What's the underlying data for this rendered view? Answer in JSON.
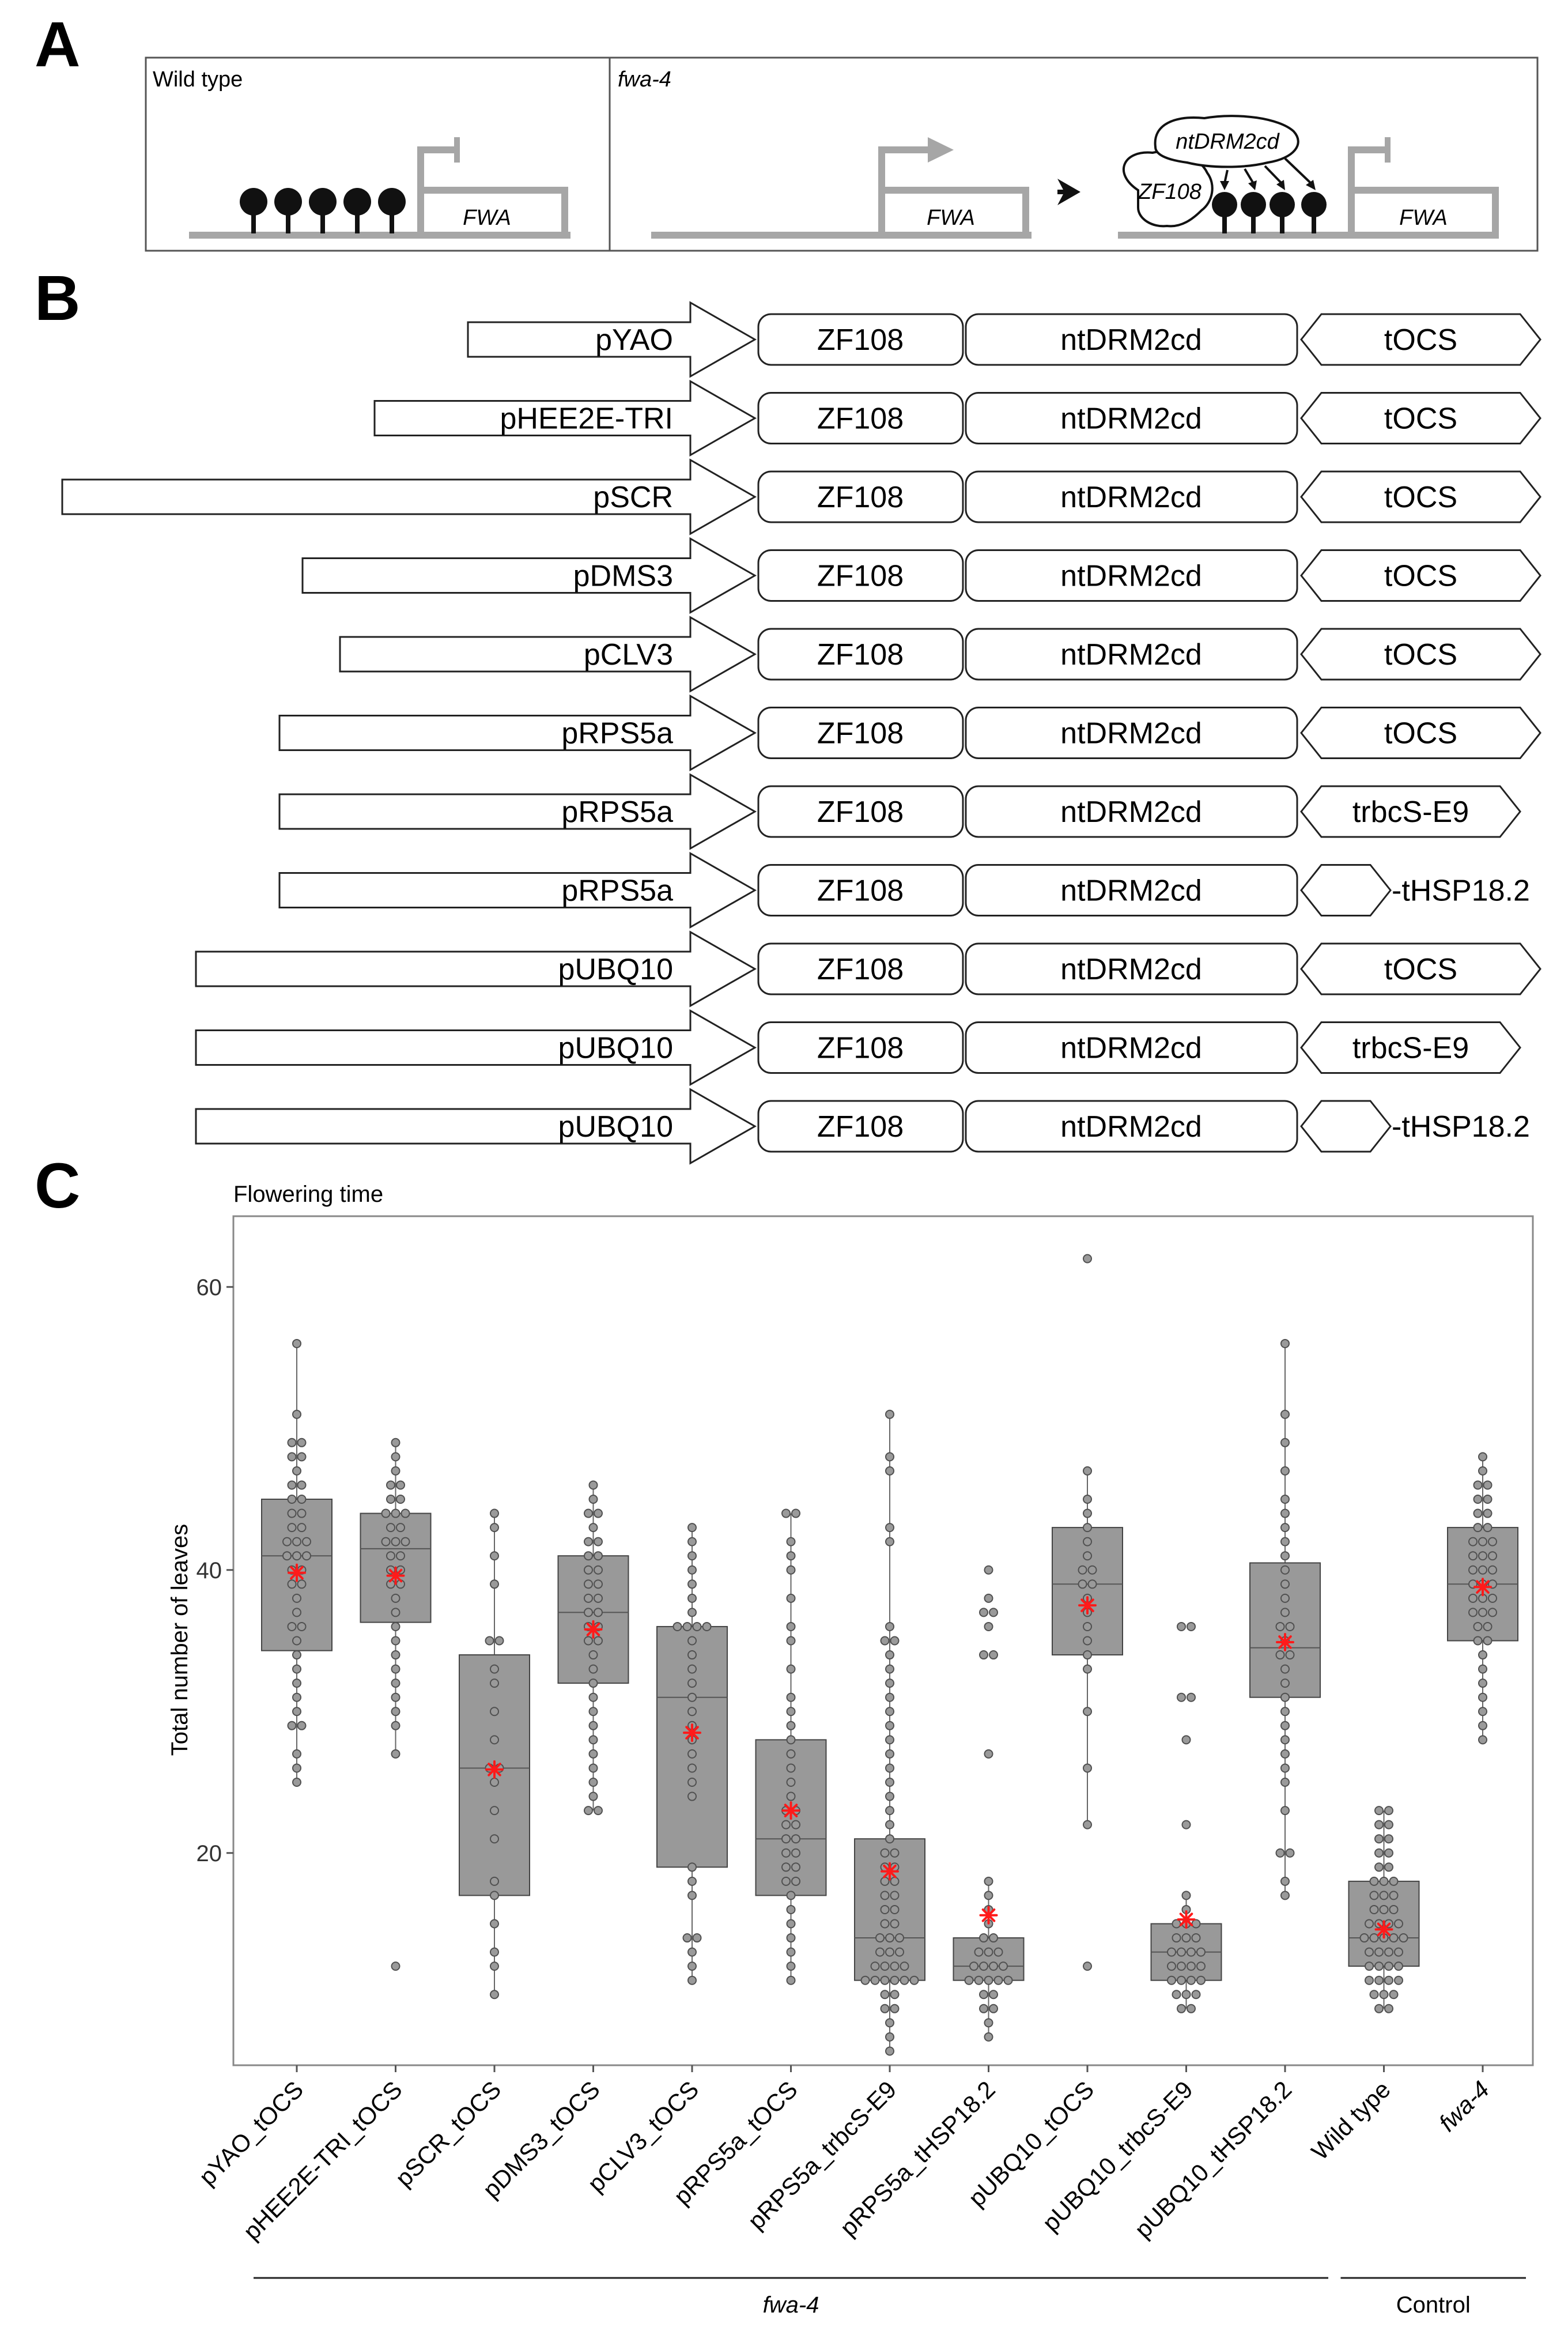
{
  "panel_a": {
    "letter": "A",
    "wild_type_label": "Wild type",
    "fwa4_label": "fwa-4",
    "gene_label": "FWA",
    "zf_label": "ZF108",
    "drm_label": "ntDRM2cd"
  },
  "panel_b": {
    "letter": "B",
    "constructs": [
      {
        "promoter": "pYAO",
        "zf": "ZF108",
        "effector": "ntDRM2cd",
        "terminator": "tOCS"
      },
      {
        "promoter": "pHEE2E-TRI",
        "zf": "ZF108",
        "effector": "ntDRM2cd",
        "terminator": "tOCS"
      },
      {
        "promoter": "pSCR",
        "zf": "ZF108",
        "effector": "ntDRM2cd",
        "terminator": "tOCS"
      },
      {
        "promoter": "pDMS3",
        "zf": "ZF108",
        "effector": "ntDRM2cd",
        "terminator": "tOCS"
      },
      {
        "promoter": "pCLV3",
        "zf": "ZF108",
        "effector": "ntDRM2cd",
        "terminator": "tOCS"
      },
      {
        "promoter": "pRPS5a",
        "zf": "ZF108",
        "effector": "ntDRM2cd",
        "terminator": "tOCS"
      },
      {
        "promoter": "pRPS5a",
        "zf": "ZF108",
        "effector": "ntDRM2cd",
        "terminator": "trbcS-E9"
      },
      {
        "promoter": "pRPS5a",
        "zf": "ZF108",
        "effector": "ntDRM2cd",
        "terminator": "-tHSP18.2"
      },
      {
        "promoter": "pUBQ10",
        "zf": "ZF108",
        "effector": "ntDRM2cd",
        "terminator": "tOCS"
      },
      {
        "promoter": "pUBQ10",
        "zf": "ZF108",
        "effector": "ntDRM2cd",
        "terminator": "trbcS-E9"
      },
      {
        "promoter": "pUBQ10",
        "zf": "ZF108",
        "effector": "ntDRM2cd",
        "terminator": "-tHSP18.2"
      }
    ]
  },
  "chart_data": {
    "letter": "C",
    "type": "box",
    "title": "Flowering time",
    "xlabel": "",
    "ylabel": "Total number of leaves",
    "ylim": [
      5,
      65
    ],
    "yticks": [
      20,
      40,
      60
    ],
    "categories": [
      "pYAO_tOCS",
      "pHEE2E-TRI_tOCS",
      "pSCR_tOCS",
      "pDMS3_tOCS",
      "pCLV3_tOCS",
      "pRPS5a_tOCS",
      "pRPS5a_trbcS-E9",
      "pRPS5a_tHSP18.2",
      "pUBQ10_tOCS",
      "pUBQ10_trbcS-E9",
      "pUBQ10_tHSP18.2",
      "Wild type",
      "fwa-4"
    ],
    "italic_categories": [
      "fwa-4"
    ],
    "groups": [
      {
        "label": "fwa-4",
        "from": 0,
        "to": 10,
        "italic": true
      },
      {
        "label": "Control",
        "from": 11,
        "to": 12,
        "italic": false
      }
    ],
    "series": [
      {
        "name": "pYAO_tOCS",
        "q1": 34.3,
        "median": 41,
        "q3": 45,
        "whisker_low": 25,
        "whisker_high": 56,
        "mean": 39.8,
        "points": [
          56,
          51,
          49,
          49,
          48,
          48,
          47,
          46,
          46,
          45,
          45,
          44,
          44,
          43,
          43,
          42,
          42,
          42,
          41,
          41,
          41,
          40,
          40,
          39,
          39,
          38,
          37,
          36,
          36,
          35,
          34,
          33,
          32,
          31,
          30,
          29,
          29,
          27,
          26,
          25
        ]
      },
      {
        "name": "pHEE2E-TRI_tOCS",
        "q1": 36.3,
        "median": 41.5,
        "q3": 44,
        "whisker_low": 27,
        "whisker_high": 49,
        "mean": 39.6,
        "points": [
          49,
          48,
          47,
          46,
          46,
          45,
          45,
          44,
          44,
          44,
          43,
          43,
          42,
          42,
          42,
          41,
          41,
          40,
          40,
          39,
          39,
          38,
          37,
          36,
          35,
          34,
          33,
          32,
          31,
          30,
          29,
          27,
          12
        ]
      },
      {
        "name": "pSCR_tOCS",
        "q1": 17,
        "median": 26,
        "q3": 34,
        "whisker_low": 10,
        "whisker_high": 44,
        "mean": 25.9,
        "points": [
          44,
          43,
          41,
          39,
          35,
          35,
          33,
          32,
          30,
          28,
          26,
          26,
          25,
          23,
          21,
          18,
          17,
          15,
          13,
          12,
          10
        ]
      },
      {
        "name": "pDMS3_tOCS",
        "q1": 32,
        "median": 37,
        "q3": 41,
        "whisker_low": 23,
        "whisker_high": 46,
        "mean": 35.8,
        "points": [
          46,
          45,
          44,
          44,
          43,
          42,
          42,
          41,
          41,
          40,
          40,
          39,
          39,
          38,
          38,
          37,
          37,
          36,
          36,
          35,
          35,
          34,
          33,
          32,
          31,
          30,
          29,
          28,
          27,
          26,
          25,
          24,
          23,
          23
        ]
      },
      {
        "name": "pCLV3_tOCS",
        "q1": 19,
        "median": 31,
        "q3": 36,
        "whisker_low": 11,
        "whisker_high": 43,
        "mean": 28.5,
        "points": [
          43,
          42,
          41,
          40,
          39,
          38,
          37,
          36,
          36,
          36,
          36,
          35,
          34,
          33,
          32,
          31,
          30,
          29,
          28,
          27,
          26,
          25,
          24,
          19,
          18,
          17,
          14,
          14,
          13,
          12,
          11
        ]
      },
      {
        "name": "pRPS5a_tOCS",
        "q1": 17,
        "median": 21,
        "q3": 28,
        "whisker_low": 11,
        "whisker_high": 44,
        "mean": 23,
        "points": [
          44,
          44,
          42,
          41,
          40,
          38,
          36,
          35,
          33,
          31,
          30,
          29,
          28,
          27,
          26,
          25,
          24,
          23,
          23,
          22,
          22,
          21,
          21,
          20,
          20,
          19,
          19,
          18,
          18,
          17,
          16,
          15,
          14,
          13,
          12,
          11
        ]
      },
      {
        "name": "pRPS5a_trbcS-E9",
        "q1": 11,
        "median": 14,
        "q3": 21,
        "whisker_low": 6,
        "whisker_high": 51,
        "mean": 18.7,
        "points": [
          51,
          48,
          47,
          43,
          42,
          36,
          35,
          35,
          34,
          33,
          32,
          31,
          30,
          29,
          28,
          27,
          26,
          25,
          24,
          23,
          22,
          21,
          20,
          20,
          19,
          19,
          18,
          18,
          17,
          17,
          16,
          16,
          15,
          15,
          14,
          14,
          14,
          13,
          13,
          13,
          12,
          12,
          12,
          12,
          11,
          11,
          11,
          11,
          11,
          11,
          10,
          10,
          9,
          9,
          8,
          7,
          6
        ]
      },
      {
        "name": "pRPS5a_tHSP18.2",
        "q1": 11,
        "median": 12,
        "q3": 14,
        "whisker_low": 7,
        "whisker_high": 18,
        "mean": 15.6,
        "points": [
          40,
          38,
          37,
          37,
          36,
          34,
          34,
          27,
          18,
          17,
          16,
          15,
          14,
          14,
          13,
          13,
          13,
          12,
          12,
          12,
          12,
          11,
          11,
          11,
          11,
          11,
          10,
          10,
          9,
          9,
          8,
          7
        ]
      },
      {
        "name": "pUBQ10_tOCS",
        "q1": 34,
        "median": 39,
        "q3": 43,
        "whisker_low": 22,
        "whisker_high": 47,
        "mean": 37.5,
        "points": [
          62,
          47,
          45,
          44,
          43,
          42,
          41,
          40,
          40,
          39,
          39,
          38,
          37,
          36,
          35,
          34,
          33,
          30,
          26,
          22,
          12
        ]
      },
      {
        "name": "pUBQ10_trbcS-E9",
        "q1": 11,
        "median": 13,
        "q3": 15,
        "whisker_low": 9,
        "whisker_high": 17,
        "mean": 15.3,
        "points": [
          36,
          36,
          31,
          31,
          28,
          22,
          17,
          16,
          15,
          15,
          15,
          14,
          14,
          14,
          13,
          13,
          13,
          13,
          12,
          12,
          12,
          12,
          11,
          11,
          11,
          11,
          10,
          10,
          10,
          9,
          9
        ]
      },
      {
        "name": "pUBQ10_tHSP18.2",
        "q1": 31,
        "median": 34.5,
        "q3": 40.5,
        "whisker_low": 17,
        "whisker_high": 56,
        "mean": 34.9,
        "points": [
          56,
          51,
          49,
          47,
          45,
          44,
          43,
          42,
          41,
          40,
          39,
          38,
          37,
          36,
          36,
          35,
          34,
          34,
          33,
          32,
          31,
          30,
          29,
          28,
          27,
          26,
          25,
          23,
          20,
          20,
          18,
          17
        ]
      },
      {
        "name": "Wild type",
        "q1": 12,
        "median": 14,
        "q3": 18,
        "whisker_low": 9,
        "whisker_high": 23,
        "mean": 14.6,
        "points": [
          23,
          23,
          22,
          22,
          21,
          21,
          20,
          20,
          19,
          19,
          18,
          18,
          18,
          17,
          17,
          17,
          16,
          16,
          16,
          15,
          15,
          15,
          15,
          14,
          14,
          14,
          14,
          14,
          13,
          13,
          13,
          13,
          12,
          12,
          12,
          12,
          11,
          11,
          11,
          11,
          10,
          10,
          10,
          9,
          9
        ]
      },
      {
        "name": "fwa-4",
        "q1": 35,
        "median": 39,
        "q3": 43,
        "whisker_low": 28,
        "whisker_high": 48,
        "mean": 38.8,
        "points": [
          48,
          47,
          46,
          46,
          45,
          45,
          44,
          44,
          43,
          43,
          42,
          42,
          42,
          41,
          41,
          41,
          40,
          40,
          40,
          39,
          39,
          39,
          38,
          38,
          38,
          37,
          37,
          37,
          36,
          36,
          35,
          35,
          34,
          33,
          32,
          31,
          30,
          29,
          28
        ]
      }
    ]
  },
  "colors": {
    "box_fill": "#999999",
    "box_stroke": "#444444",
    "dot_fill": "#9a9a9a",
    "dot_stroke": "#505050",
    "mean_marker": "#ff1a1a",
    "diagram_gray": "#a6a6a6",
    "methyl": "#111111"
  }
}
